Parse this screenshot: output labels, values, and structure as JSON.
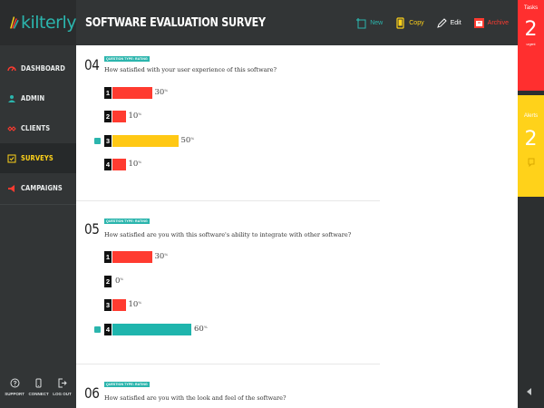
{
  "brand": {
    "name": "kilterly"
  },
  "colors": {
    "accent": "#2bb5ad",
    "red": "#ff3b30",
    "yellow": "#ffd21a",
    "dark": "#323536"
  },
  "sidebar": {
    "items": [
      {
        "label": "DASHBOARD",
        "icon": "dashboard-icon",
        "active": false
      },
      {
        "label": "ADMIN",
        "icon": "admin-icon",
        "active": false
      },
      {
        "label": "CLIENTS",
        "icon": "clients-icon",
        "active": false
      },
      {
        "label": "SURVEYS",
        "icon": "surveys-icon",
        "active": true
      },
      {
        "label": "CAMPAIGNS",
        "icon": "campaigns-icon",
        "active": false
      }
    ],
    "footer": [
      {
        "label": "SUPPORT",
        "icon": "support-icon"
      },
      {
        "label": "CONNECT",
        "icon": "phone-icon"
      },
      {
        "label": "LOG OUT",
        "icon": "logout-icon"
      }
    ]
  },
  "header": {
    "title": "SOFTWARE EVALUATION SURVEY",
    "actions": {
      "new": "New",
      "copy": "Copy",
      "edit": "Edit",
      "archive": "Archive"
    }
  },
  "questions": [
    {
      "number": "04",
      "type": "QUESTION TYPE: RATING",
      "text": "How satisfied with your user experience of this software?",
      "options": [
        {
          "n": "1",
          "pct": "30",
          "value": 30,
          "color": "#ff3b30",
          "selected": false
        },
        {
          "n": "2",
          "pct": "10",
          "value": 10,
          "color": "#ff3b30",
          "selected": false
        },
        {
          "n": "3",
          "pct": "50",
          "value": 50,
          "color": "#ffc814",
          "selected": true
        },
        {
          "n": "4",
          "pct": "10",
          "value": 10,
          "color": "#ff3b30",
          "selected": false
        }
      ]
    },
    {
      "number": "05",
      "type": "QUESTION TYPE: RATING",
      "text": "How satisfied are you with this software's ability to integrate with other software?",
      "options": [
        {
          "n": "1",
          "pct": "30",
          "value": 30,
          "color": "#ff3b30",
          "selected": false
        },
        {
          "n": "2",
          "pct": "0",
          "value": 0,
          "color": "#ff3b30",
          "selected": false
        },
        {
          "n": "3",
          "pct": "10",
          "value": 10,
          "color": "#ff3b30",
          "selected": false
        },
        {
          "n": "4",
          "pct": "60",
          "value": 60,
          "color": "#1fb5ad",
          "selected": true
        }
      ]
    },
    {
      "number": "06",
      "type": "QUESTION TYPE: RATING",
      "text": "How satisfied are you with the look and feel of the software?",
      "options": []
    }
  ],
  "pct_symbol": "%",
  "tasks": {
    "label": "Tasks",
    "count": "2",
    "sub": "urgent"
  },
  "alerts": {
    "label": "Alerts",
    "count": "2"
  }
}
